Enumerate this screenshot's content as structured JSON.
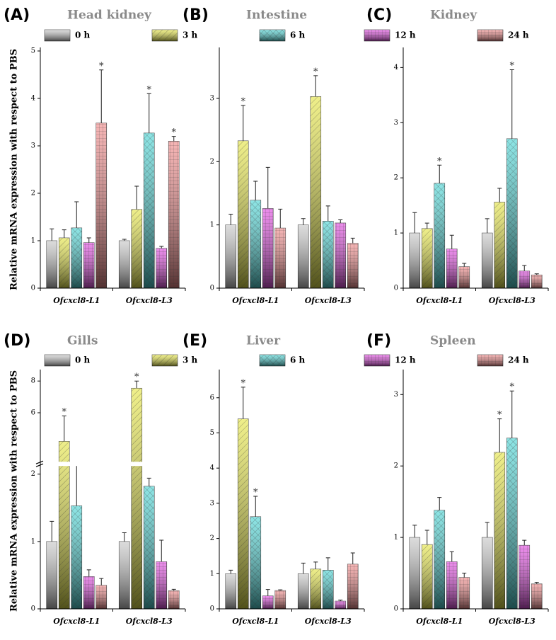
{
  "chart_data": [
    {
      "type": "bar",
      "panel": "(A)",
      "title": "Head kidney",
      "ylabel": "Relative mRNA expression with respect to PBS",
      "categories": [
        "Ofcxcl8-L1",
        "Ofcxcl8-L3"
      ],
      "ylim": [
        0,
        5
      ],
      "yticks": [
        0,
        1,
        2,
        3,
        4,
        5
      ],
      "series": [
        {
          "name": "0 h",
          "color": "#c8c8c8",
          "hatch": "none",
          "values": [
            1.0,
            1.0
          ],
          "errors": [
            0.25,
            0.03
          ],
          "significance": [
            null,
            null
          ]
        },
        {
          "name": "3 h",
          "color": "#e6e64a",
          "hatch": "diagonal",
          "values": [
            1.06,
            1.66
          ],
          "errors": [
            0.17,
            0.49
          ],
          "significance": [
            null,
            null
          ]
        },
        {
          "name": "6 h",
          "color": "#4fd6d6",
          "hatch": "cross",
          "values": [
            1.27,
            3.27
          ],
          "errors": [
            0.55,
            0.83
          ],
          "significance": [
            null,
            "*"
          ]
        },
        {
          "name": "12 h",
          "color": "#e04ee0",
          "hatch": "grid",
          "values": [
            0.96,
            0.84
          ],
          "errors": [
            0.1,
            0.04
          ],
          "significance": [
            null,
            null
          ]
        },
        {
          "name": "24 h",
          "color": "#f08c8c",
          "hatch": "grid",
          "values": [
            3.48,
            3.1
          ],
          "errors": [
            1.12,
            0.1
          ],
          "significance": [
            "*",
            "*"
          ]
        }
      ]
    },
    {
      "type": "bar",
      "panel": "(B)",
      "title": "Intestine",
      "categories": [
        "Ofcxcl8-L1",
        "Ofcxcl8-L3"
      ],
      "ylim": [
        0,
        3.75
      ],
      "yticks": [
        0,
        1,
        2,
        3
      ],
      "series": [
        {
          "name": "0 h",
          "color": "#c8c8c8",
          "hatch": "none",
          "values": [
            1.0,
            1.0
          ],
          "errors": [
            0.17,
            0.1
          ],
          "significance": [
            null,
            null
          ]
        },
        {
          "name": "3 h",
          "color": "#e6e64a",
          "hatch": "diagonal",
          "values": [
            2.33,
            3.03
          ],
          "errors": [
            0.56,
            0.33
          ],
          "significance": [
            "*",
            "*"
          ]
        },
        {
          "name": "6 h",
          "color": "#4fd6d6",
          "hatch": "cross",
          "values": [
            1.39,
            1.06
          ],
          "errors": [
            0.3,
            0.24
          ],
          "significance": [
            null,
            null
          ]
        },
        {
          "name": "12 h",
          "color": "#e04ee0",
          "hatch": "grid",
          "values": [
            1.26,
            1.03
          ],
          "errors": [
            0.65,
            0.05
          ],
          "significance": [
            null,
            null
          ]
        },
        {
          "name": "24 h",
          "color": "#f08c8c",
          "hatch": "grid",
          "values": [
            0.95,
            0.71
          ],
          "errors": [
            0.3,
            0.08
          ],
          "significance": [
            null,
            null
          ]
        }
      ]
    },
    {
      "type": "bar",
      "panel": "(C)",
      "title": "Kidney",
      "categories": [
        "Ofcxcl8-L1",
        "Ofcxcl8-L3"
      ],
      "ylim": [
        0,
        4.3
      ],
      "yticks": [
        0,
        1,
        2,
        3,
        4
      ],
      "series": [
        {
          "name": "0 h",
          "color": "#c8c8c8",
          "hatch": "none",
          "values": [
            1.0,
            1.0
          ],
          "errors": [
            0.37,
            0.26
          ],
          "significance": [
            null,
            null
          ]
        },
        {
          "name": "3 h",
          "color": "#e6e64a",
          "hatch": "diagonal",
          "values": [
            1.08,
            1.56
          ],
          "errors": [
            0.1,
            0.25
          ],
          "significance": [
            null,
            null
          ]
        },
        {
          "name": "6 h",
          "color": "#4fd6d6",
          "hatch": "cross",
          "values": [
            1.9,
            2.71
          ],
          "errors": [
            0.33,
            1.25
          ],
          "significance": [
            "*",
            "*"
          ]
        },
        {
          "name": "12 h",
          "color": "#e04ee0",
          "hatch": "grid",
          "values": [
            0.71,
            0.31
          ],
          "errors": [
            0.25,
            0.1
          ],
          "significance": [
            null,
            null
          ]
        },
        {
          "name": "24 h",
          "color": "#f08c8c",
          "hatch": "grid",
          "values": [
            0.39,
            0.24
          ],
          "errors": [
            0.06,
            0.02
          ],
          "significance": [
            null,
            null
          ]
        }
      ]
    },
    {
      "type": "bar",
      "panel": "(D)",
      "title": "Gills",
      "ylabel": "Relative mRNA expression with respect to PBS",
      "categories": [
        "Ofcxcl8-L1",
        "Ofcxcl8-L3"
      ],
      "ylim": [
        0,
        8.5
      ],
      "ybreak": [
        2.1,
        3
      ],
      "yticks": [
        0,
        1,
        2,
        6,
        8
      ],
      "series": [
        {
          "name": "0 h",
          "color": "#c8c8c8",
          "hatch": "none",
          "values": [
            1.0,
            1.0
          ],
          "errors": [
            0.3,
            0.13
          ],
          "significance": [
            null,
            null
          ]
        },
        {
          "name": "3 h",
          "color": "#e6e64a",
          "hatch": "diagonal",
          "values": [
            4.2,
            7.55
          ],
          "errors": [
            1.6,
            0.45
          ],
          "significance": [
            "*",
            "*"
          ]
        },
        {
          "name": "6 h",
          "color": "#4fd6d6",
          "hatch": "cross",
          "values": [
            1.53,
            1.82
          ],
          "errors": [
            0.93,
            0.12
          ],
          "significance": [
            null,
            null
          ]
        },
        {
          "name": "12 h",
          "color": "#e04ee0",
          "hatch": "grid",
          "values": [
            0.48,
            0.7
          ],
          "errors": [
            0.1,
            0.32
          ],
          "significance": [
            null,
            null
          ]
        },
        {
          "name": "24 h",
          "color": "#f08c8c",
          "hatch": "grid",
          "values": [
            0.35,
            0.27
          ],
          "errors": [
            0.1,
            0.02
          ],
          "significance": [
            null,
            null
          ]
        }
      ]
    },
    {
      "type": "bar",
      "panel": "(E)",
      "title": "Liver",
      "categories": [
        "Ofcxcl8-L1",
        "Ofcxcl8-L3"
      ],
      "ylim": [
        0,
        6.7
      ],
      "yticks": [
        0,
        1,
        2,
        3,
        4,
        5,
        6
      ],
      "series": [
        {
          "name": "0 h",
          "color": "#c8c8c8",
          "hatch": "none",
          "values": [
            1.0,
            1.0
          ],
          "errors": [
            0.1,
            0.3
          ],
          "significance": [
            null,
            null
          ]
        },
        {
          "name": "3 h",
          "color": "#e6e64a",
          "hatch": "diagonal",
          "values": [
            5.4,
            1.13
          ],
          "errors": [
            0.9,
            0.2
          ],
          "significance": [
            "*",
            null
          ]
        },
        {
          "name": "6 h",
          "color": "#4fd6d6",
          "hatch": "cross",
          "values": [
            2.62,
            1.1
          ],
          "errors": [
            0.58,
            0.35
          ],
          "significance": [
            "*",
            null
          ]
        },
        {
          "name": "12 h",
          "color": "#e04ee0",
          "hatch": "grid",
          "values": [
            0.37,
            0.22
          ],
          "errors": [
            0.18,
            0.03
          ],
          "significance": [
            null,
            null
          ]
        },
        {
          "name": "24 h",
          "color": "#f08c8c",
          "hatch": "grid",
          "values": [
            0.52,
            1.27
          ],
          "errors": [
            0.02,
            0.32
          ],
          "significance": [
            null,
            null
          ]
        }
      ]
    },
    {
      "type": "bar",
      "panel": "(F)",
      "title": "Spleen",
      "categories": [
        "Ofcxcl8-L1",
        "Ofcxcl8-L3"
      ],
      "ylim": [
        0,
        3.3
      ],
      "yticks": [
        0,
        1,
        2,
        3
      ],
      "series": [
        {
          "name": "0 h",
          "color": "#c8c8c8",
          "hatch": "none",
          "values": [
            1.0,
            1.0
          ],
          "errors": [
            0.17,
            0.21
          ],
          "significance": [
            null,
            null
          ]
        },
        {
          "name": "3 h",
          "color": "#e6e64a",
          "hatch": "diagonal",
          "values": [
            0.9,
            2.19
          ],
          "errors": [
            0.2,
            0.47
          ],
          "significance": [
            null,
            "*"
          ]
        },
        {
          "name": "6 h",
          "color": "#4fd6d6",
          "hatch": "cross",
          "values": [
            1.38,
            2.39
          ],
          "errors": [
            0.18,
            0.66
          ],
          "significance": [
            null,
            "*"
          ]
        },
        {
          "name": "12 h",
          "color": "#e04ee0",
          "hatch": "grid",
          "values": [
            0.66,
            0.89
          ],
          "errors": [
            0.14,
            0.07
          ],
          "significance": [
            null,
            null
          ]
        },
        {
          "name": "24 h",
          "color": "#f08c8c",
          "hatch": "grid",
          "values": [
            0.44,
            0.35
          ],
          "errors": [
            0.06,
            0.02
          ],
          "significance": [
            null,
            null
          ]
        }
      ]
    }
  ]
}
